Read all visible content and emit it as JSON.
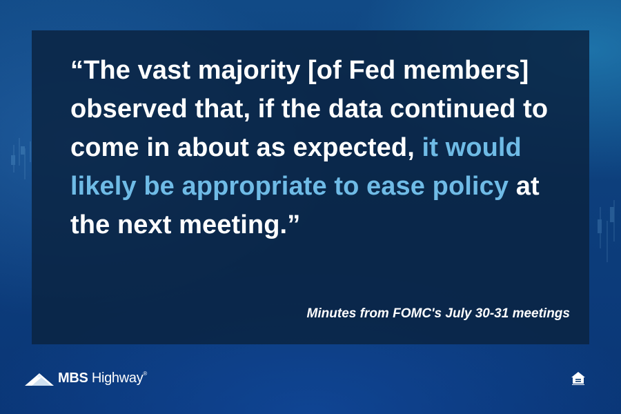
{
  "quote": {
    "part1": "“The vast majority [of Fed members] observed that, if the data continued to come in about as expected, ",
    "highlight": "it would likely be appropriate to ease policy",
    "part2": " at the next meeting.”"
  },
  "source": "Minutes from FOMC's July 30-31 meetings",
  "brand": {
    "name_bold": "MBS",
    "name_regular": "Highway",
    "registered": "®"
  },
  "icons": {
    "logo": "mountain-logo-icon",
    "badge": "equal-housing-opportunity-icon"
  },
  "colors": {
    "highlight": "#6fbbe6",
    "panel": "#0a2442",
    "background": "#0d3f7c"
  }
}
